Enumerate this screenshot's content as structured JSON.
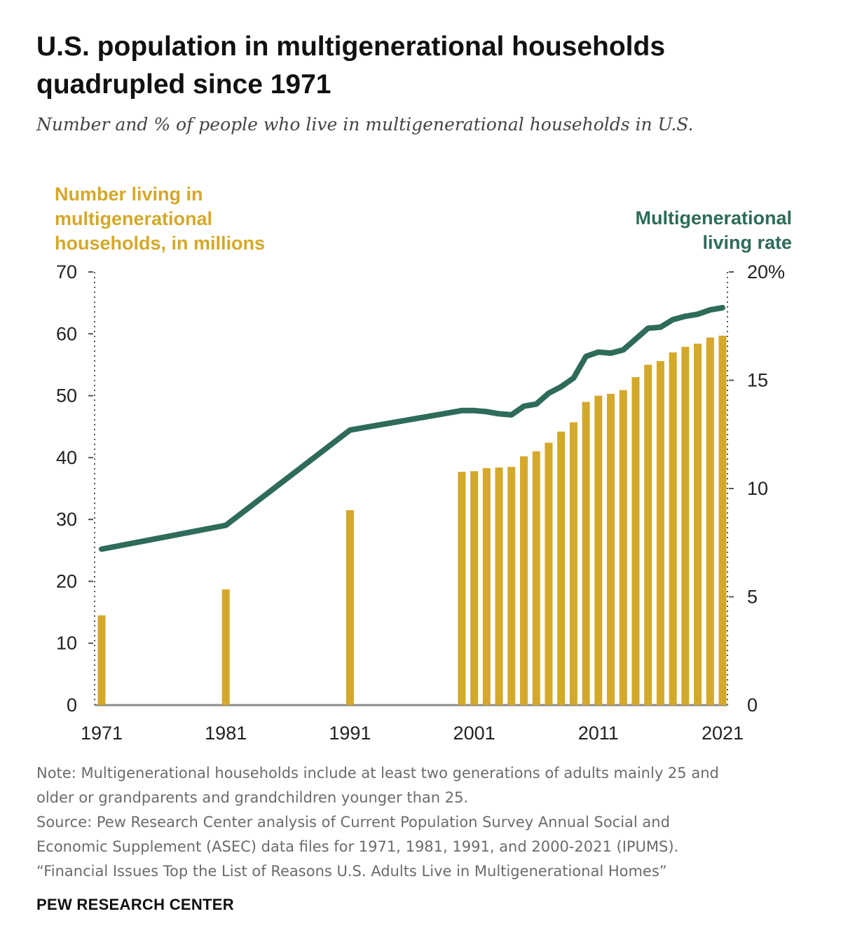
{
  "header": {
    "title_line1": "U.S. population in multigenerational households",
    "title_line2": "quadrupled since 1971",
    "subtitle": "Number and % of people who live in multigenerational households in U.S."
  },
  "chart_data": {
    "type": "bar",
    "x": [
      1971,
      1981,
      1991,
      2000,
      2001,
      2002,
      2003,
      2004,
      2005,
      2006,
      2007,
      2008,
      2009,
      2010,
      2011,
      2012,
      2013,
      2014,
      2015,
      2016,
      2017,
      2018,
      2019,
      2020,
      2021
    ],
    "series": [
      {
        "name": "Number living in multigenerational households, in millions",
        "chart": "bar",
        "axis": "left",
        "color": "#d4a82a",
        "values": [
          14.5,
          18.7,
          31.5,
          37.7,
          37.8,
          38.3,
          38.4,
          38.5,
          40.2,
          41.0,
          42.4,
          44.2,
          45.7,
          49.0,
          50.0,
          50.3,
          50.9,
          53.0,
          55.0,
          55.6,
          57.0,
          57.9,
          58.4,
          59.4,
          59.7
        ]
      },
      {
        "name": "Multigenerational living rate",
        "chart": "line",
        "axis": "right",
        "color": "#2e6b5a",
        "x": [
          1971,
          1981,
          1991,
          2000,
          2001,
          2002,
          2003,
          2004,
          2005,
          2006,
          2007,
          2008,
          2009,
          2010,
          2011,
          2012,
          2013,
          2014,
          2015,
          2016,
          2017,
          2018,
          2019,
          2020,
          2021
        ],
        "values": [
          7.2,
          8.3,
          12.7,
          13.6,
          13.6,
          13.55,
          13.45,
          13.4,
          13.8,
          13.9,
          14.4,
          14.7,
          15.1,
          16.1,
          16.3,
          16.25,
          16.4,
          16.9,
          17.4,
          17.45,
          17.8,
          17.95,
          18.05,
          18.25,
          18.35
        ]
      }
    ],
    "left_axis": {
      "range": [
        0,
        70
      ],
      "ticks": [
        "0",
        "10",
        "20",
        "30",
        "40",
        "50",
        "60",
        "70"
      ]
    },
    "right_axis": {
      "range": [
        0,
        20
      ],
      "ticks": [
        "0",
        "5",
        "10",
        "15",
        "20%"
      ]
    },
    "x_ticks": [
      "1971",
      "1981",
      "1991",
      "2001",
      "2011",
      "2021"
    ],
    "left_label": [
      "Number living in",
      "multigenerational",
      "households, in millions"
    ],
    "right_label": [
      "Multigenerational",
      "living rate"
    ],
    "grid": false,
    "colors": {
      "bars": "#d4a82a",
      "line": "#2e6b5a"
    }
  },
  "footer": {
    "note_lines": [
      "Note: Multigenerational households include at least two generations of adults mainly 25 and",
      "older or grandparents and grandchildren younger than 25."
    ],
    "source_lines": [
      "Source: Pew Research Center analysis of Current Population Survey Annual Social and",
      "Economic Supplement (ASEC) data files for 1971, 1981, 1991, and 2000-2021 (IPUMS).",
      "“Financial Issues Top the List of Reasons U.S. Adults Live in Multigenerational Homes”"
    ],
    "brand": "PEW RESEARCH CENTER"
  }
}
